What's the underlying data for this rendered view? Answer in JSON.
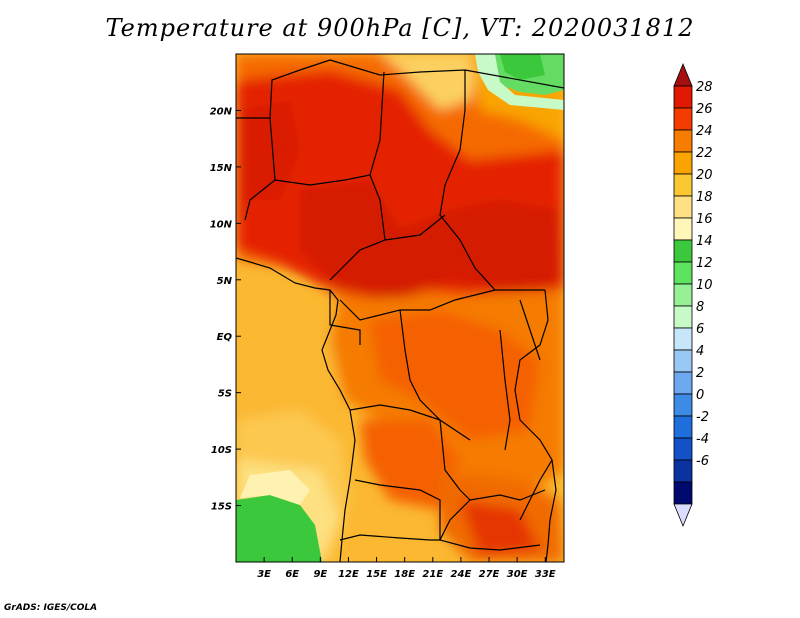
{
  "title": "Temperature at 900hPa [C], VT: 2020031812",
  "credit": "GrADS: IGES/COLA",
  "map": {
    "lon_range": [
      0,
      35
    ],
    "lat_range": [
      -20,
      25
    ],
    "x_ticks": [
      "3E",
      "6E",
      "9E",
      "12E",
      "15E",
      "18E",
      "21E",
      "24E",
      "27E",
      "30E",
      "33E"
    ],
    "y_ticks": [
      "20N",
      "15N",
      "10N",
      "5N",
      "EQ",
      "5S",
      "10S",
      "15S"
    ]
  },
  "colorbar": {
    "labels": [
      "28",
      "26",
      "24",
      "22",
      "20",
      "18",
      "16",
      "14",
      "12",
      "10",
      "8",
      "6",
      "4",
      "2",
      "0",
      "-2",
      "-4",
      "-6"
    ],
    "colors": [
      "#a50f0f",
      "#e11900",
      "#f53c00",
      "#f77d00",
      "#f9a400",
      "#fbc832",
      "#ffe082",
      "#fff7b8",
      "#3cc83c",
      "#5de35d",
      "#96f096",
      "#c8fac8",
      "#c8e6fa",
      "#9ac8f5",
      "#6ea8f0",
      "#3c8ce6",
      "#1e6edc",
      "#1450c8",
      "#0a32a0",
      "#000a6e",
      "#dcdcff"
    ]
  }
}
